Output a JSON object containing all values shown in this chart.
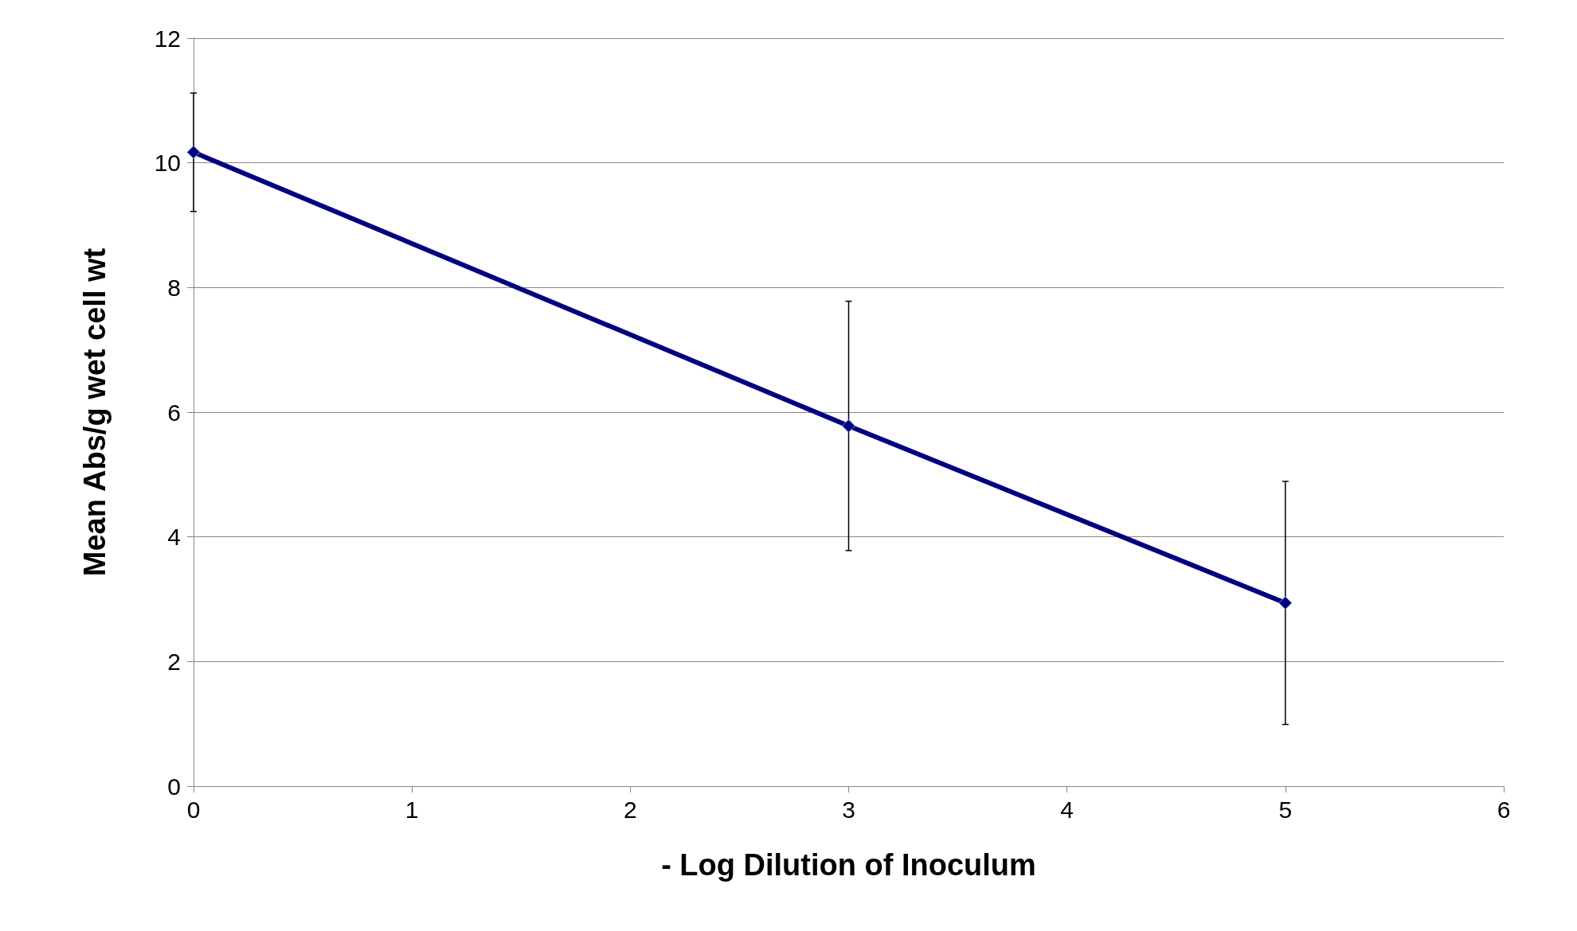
{
  "chart_data": {
    "type": "line",
    "xlabel": "- Log Dilution of Inoculum",
    "ylabel": "Mean Abs/g wet cell wt",
    "x": [
      0,
      3,
      5
    ],
    "series": [
      {
        "color": "#000080",
        "values": [
          10.17,
          5.78,
          2.94
        ],
        "errors": [
          0.95,
          2.0,
          1.95
        ]
      }
    ],
    "xlim": [
      0,
      6
    ],
    "xticks": [
      0,
      1,
      2,
      3,
      4,
      5,
      6
    ],
    "ylim": [
      0,
      12
    ],
    "yticks": [
      0,
      2,
      4,
      6,
      8,
      10,
      12
    ],
    "grid": "y",
    "marker": "diamond",
    "line_style": "solid"
  }
}
